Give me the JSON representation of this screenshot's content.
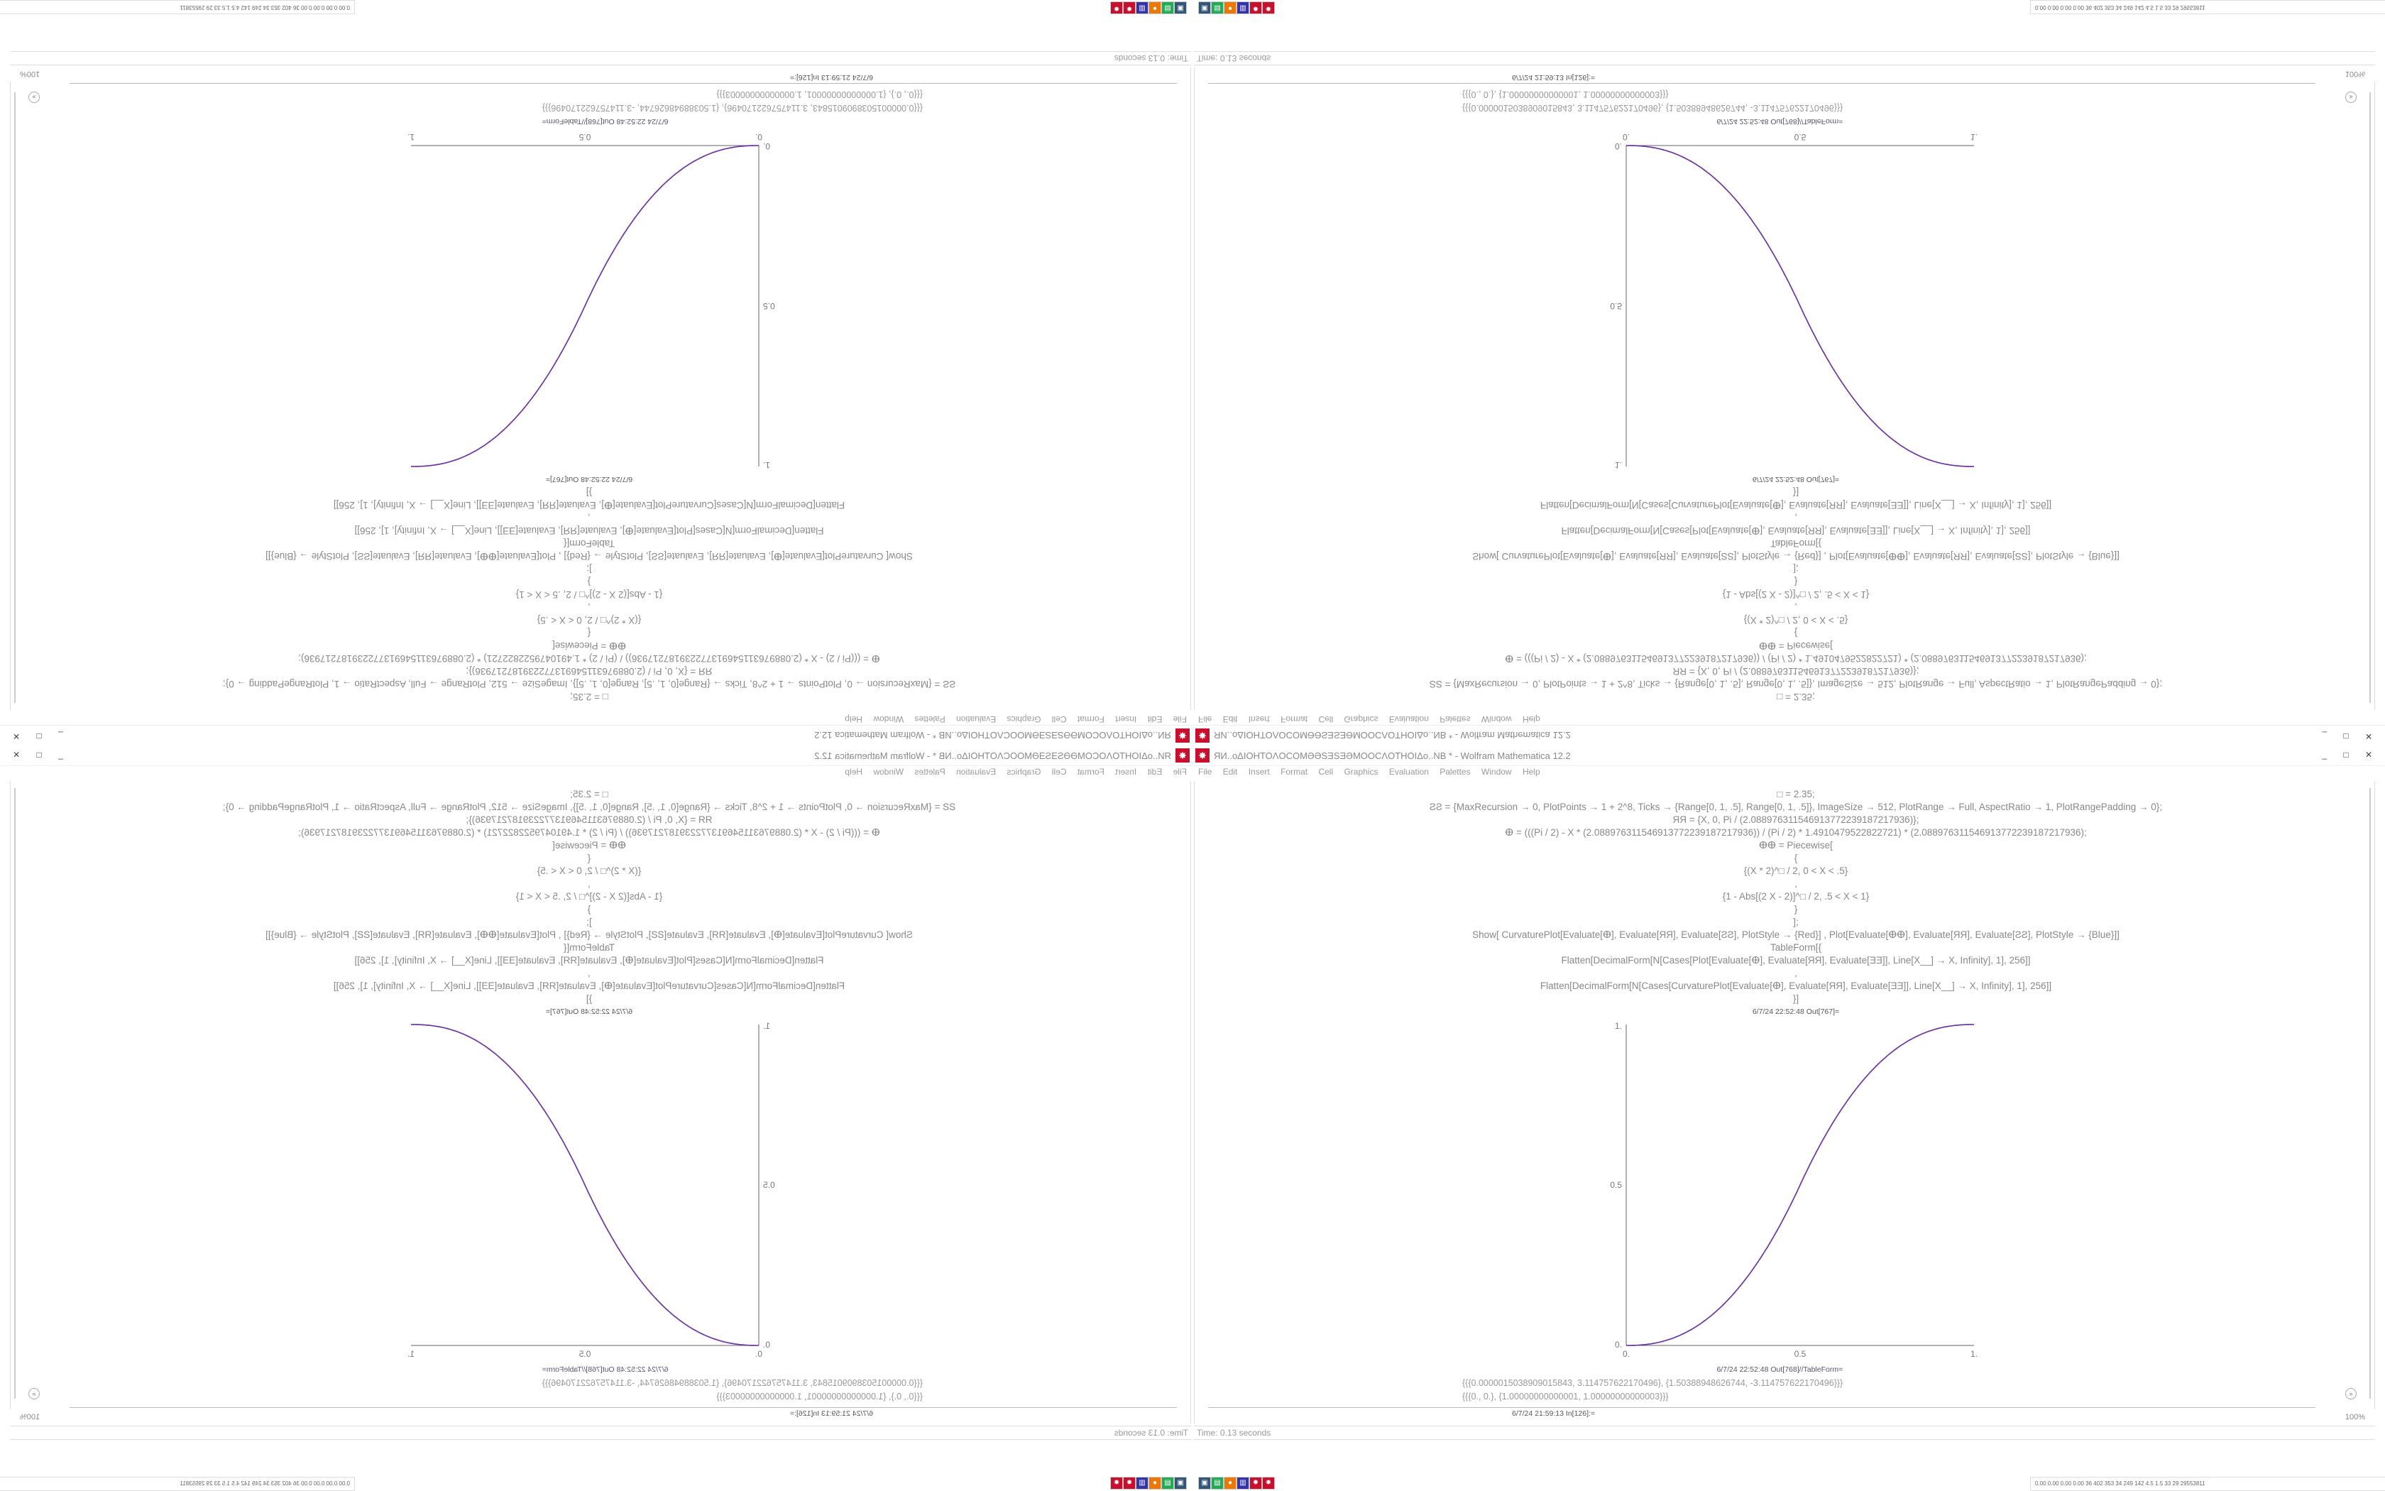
{
  "window": {
    "title": "ЯИ..oΔIOHTOΛOCOMƏƏSƎSƎƏMOOCΛOTHOIΔo..NB * - Wolfram Mathematica 12.2",
    "controls": [
      "_",
      "□",
      "✕"
    ]
  },
  "menu": [
    "File",
    "Edit",
    "Insert",
    "Format",
    "Cell",
    "Graphics",
    "Evaluation",
    "Palettes",
    "Window",
    "Help"
  ],
  "code_lines": [
    "□ = 2.35;",
    "ƧƧ = {MaxRecursion → 0, PlotPoints → 1 + 2^8, Ticks → {Range[0, 1, .5], Range[0, 1, .5]}, ImageSize → 512, PlotRange → Full, AspectRatio → 1, PlotRangePadding → 0};",
    "ЯЯ = {X, 0, Pi / (2.0889763115469137722391872179​36)};",
    "ⴲ = (((Pi / 2) - X * (2.088976311546913772239187217936)) / (Pi / 2) * 1.4910479522822721) * (2.088976311546913772239187217936);",
    "ⴲⴲ = Piecewise[",
    "{",
    "{(X * 2)^□ / 2, 0 < X < .5}",
    ",",
    "{1 - Abs[(2 X - 2)]^□ / 2, .5 < X < 1}",
    "}",
    "];",
    "Show[   CurvaturePlot[Evaluate[ⴲ], Evaluate[ЯЯ], Evaluate[ƧƧ], PlotStyle → {Red}]   ,   Plot[Evaluate[ⴲⴲ], Evaluate[ЯЯ], Evaluate[ƧƧ],  PlotStyle → {Blue}]]",
    "TableForm[{",
    "Flatten[DecimalForm[N[Cases[Plot[Evaluate[ⴲ], Evaluate[ЯЯ], Evaluate[ƎƎ]], Line[X__] → X, Infinity], 1], 256]]",
    ",",
    "Flatten[DecimalForm[N[Cases[CurvaturePlot[Evaluate[ⴲ], Evaluate[ЯЯ], Evaluate[ƎƎ]], Line[X__] → X, Infinity], 1], 256]]",
    "}]"
  ],
  "out_plot_label": "6/7/24 22:52:48 Out[767]=",
  "chart": {
    "x_ticks": [
      "0.",
      "0.5",
      "1."
    ],
    "y_ticks": [
      "0.",
      "0.5",
      "1."
    ],
    "series_colors": [
      "#d0303a",
      "#3a3ad0"
    ]
  },
  "table_output": {
    "label": "6/7/24 22:52:48 Out[768]//TableForm=",
    "row1": "{{{0.0000015038909015843, 3.114757622170496}, {1.50388948626744, -3.114757622170496}}}",
    "row2": "{{{0., 0.}, {1.00000000000001, 1.00000000000003}}}"
  },
  "next_input_label": "6/7/24 21:59:13 In[126]:=",
  "status": "Time: 0.13 seconds",
  "zoom": "100%",
  "tray_text": "0.00 0.00 0.00 0.00  36  402  353  34  249  142  4.5  1.5  33  29  29553811"
}
